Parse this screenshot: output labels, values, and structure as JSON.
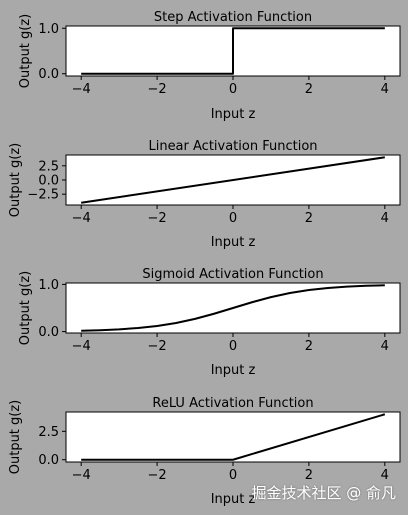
{
  "chart_data": [
    {
      "type": "line",
      "title": "Step Activation Function",
      "xlabel": "Input z",
      "ylabel": "Output g(z)",
      "xlim": [
        -4.4,
        4.4
      ],
      "ylim": [
        -0.05,
        1.05
      ],
      "xticks": [
        -4,
        -2,
        0,
        2,
        4
      ],
      "yticks": [
        0.0,
        1.0
      ],
      "ytick_labels": [
        "0.0",
        "1.0"
      ],
      "series": [
        {
          "x": [
            -4,
            0,
            0,
            4
          ],
          "y": [
            0,
            0,
            1,
            1
          ]
        }
      ]
    },
    {
      "type": "line",
      "title": "Linear Activation Function",
      "xlabel": "Input z",
      "ylabel": "Output g(z)",
      "xlim": [
        -4.4,
        4.4
      ],
      "ylim": [
        -4.4,
        4.4
      ],
      "xticks": [
        -4,
        -2,
        0,
        2,
        4
      ],
      "yticks": [
        -2.5,
        0.0,
        2.5
      ],
      "ytick_labels": [
        "-2.5",
        "0.0",
        "2.5"
      ],
      "series": [
        {
          "x": [
            -4,
            4
          ],
          "y": [
            -4,
            4
          ]
        }
      ]
    },
    {
      "type": "line",
      "title": "Sigmoid Activation Function",
      "xlabel": "Input z",
      "ylabel": "Output g(z)",
      "xlim": [
        -4.4,
        4.4
      ],
      "ylim": [
        -0.03,
        1.03
      ],
      "xticks": [
        -4,
        -2,
        0,
        2,
        4
      ],
      "yticks": [
        0.0,
        1.0
      ],
      "ytick_labels": [
        "0.0",
        "1.0"
      ],
      "series": [
        {
          "x": [
            -4,
            -3.5,
            -3,
            -2.5,
            -2,
            -1.5,
            -1,
            -0.5,
            0,
            0.5,
            1,
            1.5,
            2,
            2.5,
            3,
            3.5,
            4
          ],
          "y": [
            0.018,
            0.029,
            0.047,
            0.076,
            0.119,
            0.182,
            0.269,
            0.378,
            0.5,
            0.622,
            0.731,
            0.818,
            0.881,
            0.924,
            0.953,
            0.971,
            0.982
          ]
        }
      ]
    },
    {
      "type": "line",
      "title": "ReLU Activation Function",
      "xlabel": "Input z",
      "ylabel": "Output g(z)",
      "xlim": [
        -4.4,
        4.4
      ],
      "ylim": [
        -0.2,
        4.2
      ],
      "xticks": [
        -4,
        -2,
        0,
        2,
        4
      ],
      "yticks": [
        0.0,
        2.5
      ],
      "ytick_labels": [
        "0.0",
        "2.5"
      ],
      "series": [
        {
          "x": [
            -4,
            0,
            4
          ],
          "y": [
            0,
            0,
            4
          ]
        }
      ]
    }
  ],
  "watermark": "掘金技术社区 @ 俞凡",
  "colors": {
    "background": "#a9a9a9",
    "axes_face": "#ffffff",
    "line": "#000000"
  }
}
